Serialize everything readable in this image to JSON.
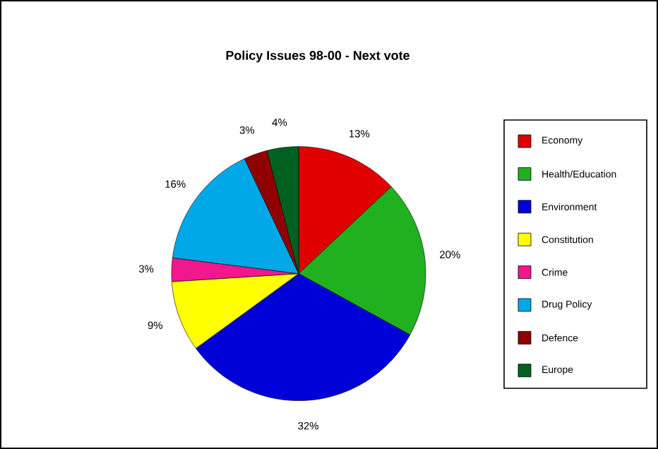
{
  "chart_data": {
    "type": "pie",
    "title": "Policy Issues 98-00 - Next vote",
    "categories": [
      "Economy",
      "Health/Education",
      "Environment",
      "Constitution",
      "Crime",
      "Drug Policy",
      "Defence",
      "Europe"
    ],
    "values": [
      13,
      20,
      32,
      9,
      3,
      16,
      3,
      4
    ],
    "value_labels": [
      "13%",
      "20%",
      "32%",
      "9%",
      "3%",
      "16%",
      "3%",
      "4%"
    ],
    "colors": [
      "#e00000",
      "#20b020",
      "#0000d8",
      "#ffff00",
      "#f0188c",
      "#00a8e8",
      "#900000",
      "#006020"
    ],
    "legend": "right"
  }
}
